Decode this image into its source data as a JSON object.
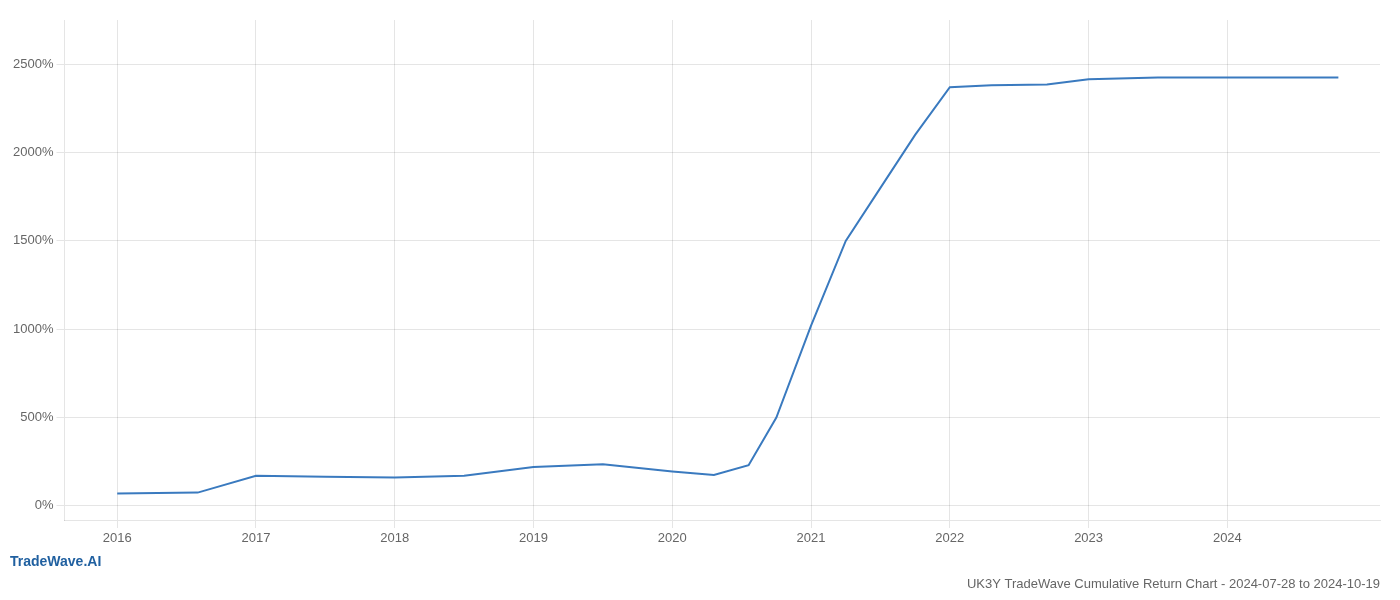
{
  "chart_data": {
    "type": "line",
    "title": "UK3Y TradeWave Cumulative Return Chart - 2024-07-28 to 2024-10-19",
    "annotations": [
      "TradeWave.AI"
    ],
    "color": "#3a7abf",
    "x": [
      2016.0,
      2016.58,
      2017.0,
      2017.5,
      2018.0,
      2018.5,
      2019.0,
      2019.5,
      2020.0,
      2020.3,
      2020.55,
      2020.75,
      2021.0,
      2021.25,
      2021.5,
      2021.75,
      2022.0,
      2022.3,
      2022.7,
      2023.0,
      2023.5,
      2024.0,
      2024.8
    ],
    "values": [
      70,
      75,
      170,
      165,
      160,
      170,
      220,
      235,
      195,
      175,
      230,
      500,
      1020,
      1500,
      1800,
      2100,
      2370,
      2380,
      2385,
      2415,
      2425,
      2425,
      2425
    ],
    "xlim": [
      2015.62,
      2025.1
    ],
    "xticks": [
      2016,
      2017,
      2018,
      2019,
      2020,
      2021,
      2022,
      2023,
      2024
    ],
    "ylim": [
      -80,
      2750
    ],
    "yticks": [
      {
        "value": 0,
        "label": "0%"
      },
      {
        "value": 500,
        "label": "500%"
      },
      {
        "value": 1000,
        "label": "1000%"
      },
      {
        "value": 1500,
        "label": "1500%"
      },
      {
        "value": 2000,
        "label": "2000%"
      },
      {
        "value": 2500,
        "label": "2500%"
      }
    ],
    "grid": true
  }
}
